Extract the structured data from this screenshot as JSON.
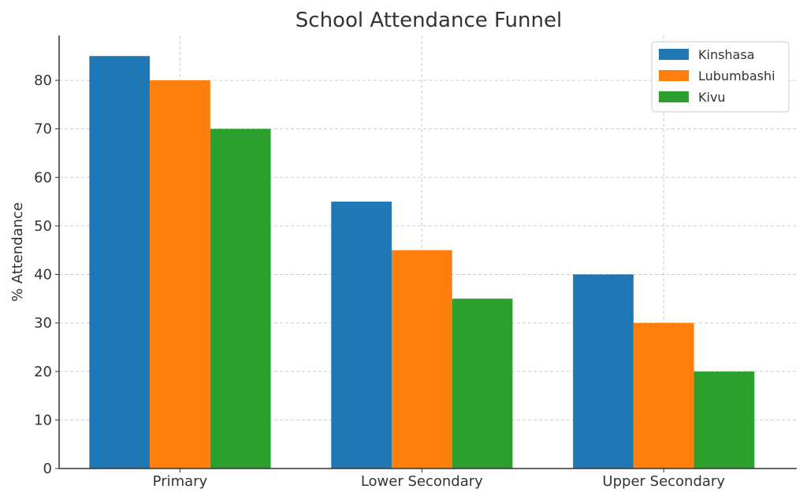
{
  "chart_data": {
    "type": "bar",
    "title": "School Attendance Funnel",
    "xlabel": "",
    "ylabel": "% Attendance",
    "categories": [
      "Primary",
      "Lower Secondary",
      "Upper Secondary"
    ],
    "series": [
      {
        "name": "Kinshasa",
        "color": "#1f77b4",
        "values": [
          85,
          55,
          40
        ]
      },
      {
        "name": "Lubumbashi",
        "color": "#ff7f0e",
        "values": [
          80,
          45,
          30
        ]
      },
      {
        "name": "Kivu",
        "color": "#2ca02c",
        "values": [
          70,
          35,
          20
        ]
      }
    ],
    "ylim": [
      0,
      89.25
    ],
    "yticks": [
      0,
      10,
      20,
      30,
      40,
      50,
      60,
      70,
      80
    ],
    "grid": true,
    "legend_position": "top-right"
  }
}
